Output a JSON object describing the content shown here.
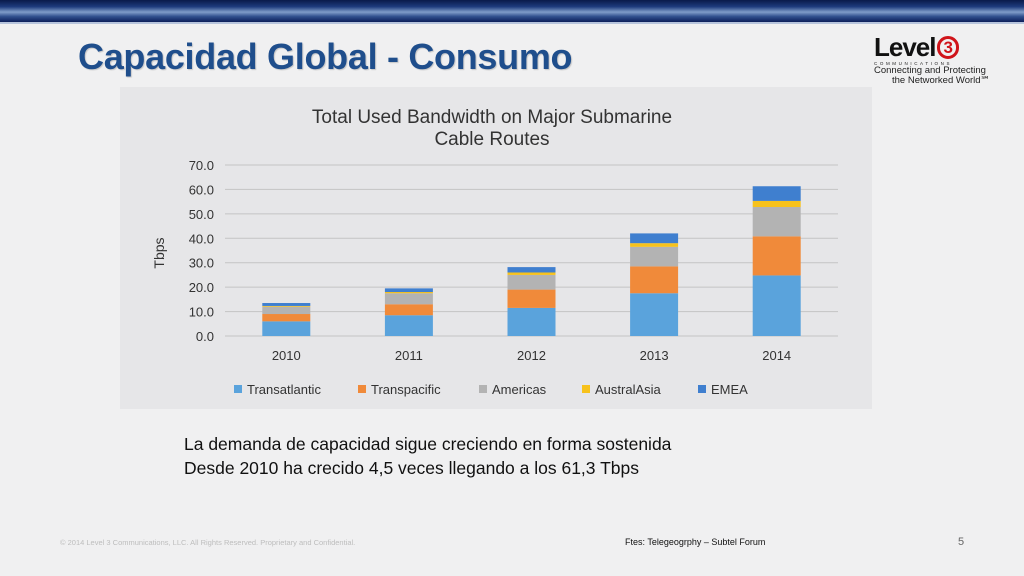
{
  "slide": {
    "title": "Capacidad Global - Consumo",
    "caption_lines": [
      "La demanda de capacidad sigue creciendo en forma sostenida",
      "Desde 2010 ha crecido 4,5 veces llegando a los 61,3 Tbps"
    ],
    "copyright": "© 2014 Level 3 Communications, LLC. All Rights Reserved. Proprietary and Confidential.",
    "source": "Ftes: Telegeogrphy – Subtel Forum",
    "page_number": "5"
  },
  "logo": {
    "word": "Level",
    "number": "3",
    "sub": "COMMUNICATIONS",
    "tagline_1": "Connecting and Protecting",
    "tagline_2": "the Networked World℠"
  },
  "colors": {
    "title": "#1f4e8c",
    "brand_red": "#d0141a"
  },
  "chart_data": {
    "type": "bar",
    "stacked": true,
    "title": "Total Used Bandwidth on Major Submarine Cable Routes",
    "ylabel": "Tbps",
    "xlabel": "",
    "ylim": [
      0,
      70
    ],
    "yticks": [
      "0.0",
      "10.0",
      "20.0",
      "30.0",
      "40.0",
      "50.0",
      "60.0",
      "70.0"
    ],
    "grid": true,
    "legend_position": "bottom",
    "categories": [
      "2010",
      "2011",
      "2012",
      "2013",
      "2014"
    ],
    "series": [
      {
        "name": "Transatlantic",
        "color": "#5aa3dc",
        "values": [
          6.0,
          8.5,
          11.5,
          17.5,
          24.8
        ]
      },
      {
        "name": "Transpacific",
        "color": "#f08a3a",
        "values": [
          3.0,
          4.5,
          7.5,
          11.0,
          16.0
        ]
      },
      {
        "name": "Americas",
        "color": "#b3b3b3",
        "values": [
          3.0,
          4.5,
          6.0,
          8.0,
          12.0
        ]
      },
      {
        "name": "AustralAsia",
        "color": "#f7c21c",
        "values": [
          0.3,
          0.5,
          1.0,
          1.5,
          2.5
        ]
      },
      {
        "name": "EMEA",
        "color": "#3f7fcf",
        "values": [
          1.2,
          1.5,
          2.2,
          4.0,
          6.0
        ]
      }
    ]
  }
}
